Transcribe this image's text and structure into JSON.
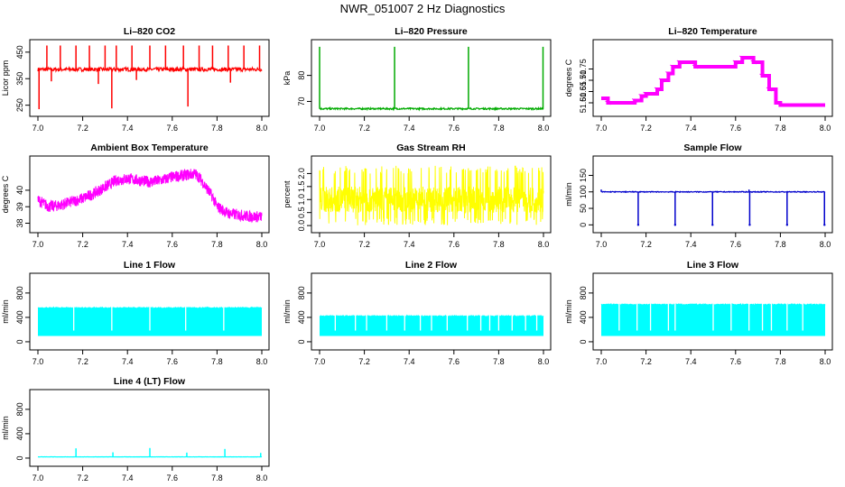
{
  "title": "NWR_051007  2 Hz Diagnostics",
  "chart_data": [
    {
      "id": "co2",
      "type": "line",
      "title": "Li–820 CO2",
      "ylabel": "Licor ppm",
      "color": "#ff0000",
      "xlim": [
        7.0,
        8.0
      ],
      "ylim": [
        225,
        480
      ],
      "yticks": [
        250,
        350,
        450
      ],
      "ytick_labels": [
        "250",
        "350",
        "450"
      ],
      "xticks": [
        7.0,
        7.2,
        7.4,
        7.6,
        7.8,
        8.0
      ],
      "xtick_labels": [
        "7.0",
        "7.2",
        "7.4",
        "7.6",
        "7.8",
        "8.0"
      ],
      "baseline": 385,
      "noise": 7,
      "spikes_up": [
        7.04,
        7.1,
        7.17,
        7.23,
        7.3,
        7.35,
        7.42,
        7.5,
        7.57,
        7.65,
        7.72,
        7.78,
        7.85,
        7.92,
        7.99
      ],
      "spike_up_value": 475,
      "spikes_down": [
        7.005,
        7.06,
        7.27,
        7.33,
        7.44,
        7.67,
        7.86
      ],
      "spike_down_values": [
        235,
        340,
        330,
        238,
        345,
        245,
        335
      ]
    },
    {
      "id": "pressure",
      "type": "line",
      "title": "Li–820 Pressure",
      "ylabel": "kPa",
      "color": "#00aa00",
      "xlim": [
        7.0,
        8.0
      ],
      "ylim": [
        66,
        92
      ],
      "yticks": [
        70,
        80
      ],
      "ytick_labels": [
        "70",
        "80"
      ],
      "xticks": [
        7.0,
        7.2,
        7.4,
        7.6,
        7.8,
        8.0
      ],
      "xtick_labels": [
        "7.0",
        "7.2",
        "7.4",
        "7.6",
        "7.8",
        "8.0"
      ],
      "baseline": 67.2,
      "noise": 0.3,
      "spikes_up": [
        7.0,
        7.335,
        7.665,
        7.998
      ],
      "spike_up_value": 91,
      "spikes_down": [],
      "spike_down_values": []
    },
    {
      "id": "licor-temp",
      "type": "step",
      "title": "Li–820 Temperature",
      "ylabel": "degrees C",
      "color": "#ff00ff",
      "xlim": [
        7.0,
        8.0
      ],
      "ylim": [
        51.56,
        51.86
      ],
      "yticks": [
        51.6,
        51.65,
        51.7,
        51.75
      ],
      "ytick_labels": [
        "51.60",
        "51.65",
        "51.70",
        "51.75"
      ],
      "xticks": [
        7.0,
        7.2,
        7.4,
        7.6,
        7.8,
        8.0
      ],
      "xtick_labels": [
        "7.0",
        "7.2",
        "7.4",
        "7.6",
        "7.8",
        "8.0"
      ],
      "x": [
        7.0,
        7.03,
        7.15,
        7.18,
        7.2,
        7.25,
        7.27,
        7.3,
        7.32,
        7.35,
        7.42,
        7.6,
        7.63,
        7.68,
        7.72,
        7.75,
        7.78,
        7.8,
        8.0
      ],
      "y": [
        51.62,
        51.6,
        51.61,
        51.63,
        51.64,
        51.66,
        51.7,
        51.73,
        51.76,
        51.78,
        51.76,
        51.78,
        51.8,
        51.78,
        51.72,
        51.66,
        51.6,
        51.59,
        51.59
      ]
    },
    {
      "id": "ambient-temp",
      "type": "band",
      "title": "Ambient Box Temperature",
      "ylabel": "degrees C",
      "color": "#ff00ff",
      "xlim": [
        7.0,
        8.0
      ],
      "ylim": [
        37.7,
        41.8
      ],
      "yticks": [
        38,
        39,
        40
      ],
      "ytick_labels": [
        "38",
        "39",
        "40"
      ],
      "xticks": [
        7.0,
        7.2,
        7.4,
        7.6,
        7.8,
        8.0
      ],
      "xtick_labels": [
        "7.0",
        "7.2",
        "7.4",
        "7.6",
        "7.8",
        "8.0"
      ],
      "x": [
        7.0,
        7.05,
        7.1,
        7.15,
        7.2,
        7.25,
        7.3,
        7.35,
        7.4,
        7.45,
        7.5,
        7.55,
        7.6,
        7.65,
        7.7,
        7.72,
        7.75,
        7.78,
        7.8,
        7.85,
        7.9,
        7.95,
        8.0
      ],
      "y": [
        39.4,
        39.0,
        39.1,
        39.3,
        39.5,
        39.8,
        40.2,
        40.6,
        40.7,
        40.6,
        40.5,
        40.6,
        40.8,
        40.9,
        41.0,
        40.8,
        40.2,
        39.6,
        39.0,
        38.6,
        38.5,
        38.4,
        38.4
      ],
      "width": 0.35
    },
    {
      "id": "gas-rh",
      "type": "noise",
      "title": "Gas Stream RH",
      "ylabel": "percent",
      "color": "#ffff00",
      "xlim": [
        7.0,
        8.0
      ],
      "ylim": [
        -0.1,
        2.5
      ],
      "yticks": [
        0.0,
        0.5,
        1.0,
        1.5,
        2.0
      ],
      "ytick_labels": [
        "0.0",
        "0.5",
        "1.0",
        "1.5",
        "2.0"
      ],
      "xticks": [
        7.0,
        7.2,
        7.4,
        7.6,
        7.8,
        8.0
      ],
      "xtick_labels": [
        "7.0",
        "7.2",
        "7.4",
        "7.6",
        "7.8",
        "8.0"
      ],
      "center": 1.0,
      "core_low": 0.5,
      "core_high": 1.5,
      "extreme_low": 0.0,
      "extreme_high": 2.3
    },
    {
      "id": "sample-flow",
      "type": "line",
      "title": "Sample Flow",
      "ylabel": "ml/min",
      "color": "#0000cc",
      "xlim": [
        7.0,
        8.0
      ],
      "ylim": [
        -10,
        195
      ],
      "yticks": [
        0,
        50,
        100,
        150
      ],
      "ytick_labels": [
        "0",
        "50",
        "100",
        "150"
      ],
      "xticks": [
        7.0,
        7.2,
        7.4,
        7.6,
        7.8,
        8.0
      ],
      "xtick_labels": [
        "7.0",
        "7.2",
        "7.4",
        "7.6",
        "7.8",
        "8.0"
      ],
      "baseline": 100,
      "noise": 1.2,
      "spikes_up": [
        7.0,
        7.66
      ],
      "spike_up_value": 107,
      "spikes_down": [
        7.165,
        7.33,
        7.497,
        7.663,
        7.83,
        7.997
      ],
      "spike_down_values": [
        0,
        0,
        0,
        0,
        0,
        0
      ]
    },
    {
      "id": "line1-flow",
      "type": "bar-band",
      "title": "Line 1 Flow",
      "ylabel": "ml/min",
      "color": "#00ffff",
      "xlim": [
        7.0,
        8.0
      ],
      "ylim": [
        -60,
        1050
      ],
      "yticks": [
        0,
        400,
        800
      ],
      "ytick_labels": [
        "0",
        "400",
        "800"
      ],
      "xticks": [
        7.0,
        7.2,
        7.4,
        7.6,
        7.8,
        8.0
      ],
      "xtick_labels": [
        "7.0",
        "7.2",
        "7.4",
        "7.6",
        "7.8",
        "8.0"
      ],
      "low": 95,
      "high": 555,
      "gaps": [
        7.16,
        7.33,
        7.5,
        7.66,
        7.83
      ]
    },
    {
      "id": "line2-flow",
      "type": "bar-band",
      "title": "Line 2 Flow",
      "ylabel": "ml/min",
      "color": "#00ffff",
      "xlim": [
        7.0,
        8.0
      ],
      "ylim": [
        -60,
        1050
      ],
      "yticks": [
        0,
        400,
        800
      ],
      "ytick_labels": [
        "0",
        "400",
        "800"
      ],
      "xticks": [
        7.0,
        7.2,
        7.4,
        7.6,
        7.8,
        8.0
      ],
      "xtick_labels": [
        "7.0",
        "7.2",
        "7.4",
        "7.6",
        "7.8",
        "8.0"
      ],
      "low": 95,
      "high": 420,
      "gaps": [
        7.07,
        7.16,
        7.21,
        7.3,
        7.38,
        7.45,
        7.5,
        7.57,
        7.66,
        7.72,
        7.76,
        7.8,
        7.86,
        7.92,
        7.97
      ]
    },
    {
      "id": "line3-flow",
      "type": "bar-band",
      "title": "Line 3 Flow",
      "ylabel": "ml/min",
      "color": "#00ffff",
      "xlim": [
        7.0,
        8.0
      ],
      "ylim": [
        -60,
        1050
      ],
      "yticks": [
        0,
        400,
        800
      ],
      "ytick_labels": [
        "0",
        "400",
        "800"
      ],
      "xticks": [
        7.0,
        7.2,
        7.4,
        7.6,
        7.8,
        8.0
      ],
      "xtick_labels": [
        "7.0",
        "7.2",
        "7.4",
        "7.6",
        "7.8",
        "8.0"
      ],
      "low": 95,
      "high": 610,
      "gaps": [
        7.08,
        7.16,
        7.22,
        7.3,
        7.33,
        7.5,
        7.58,
        7.66,
        7.72,
        7.76,
        7.83,
        7.9
      ]
    },
    {
      "id": "line4-flow",
      "type": "line",
      "title": "Line 4 (LT) Flow",
      "ylabel": "ml/min",
      "color": "#00ffff",
      "xlim": [
        7.0,
        8.0
      ],
      "ylim": [
        -60,
        1050
      ],
      "yticks": [
        0,
        400,
        800
      ],
      "ytick_labels": [
        "0",
        "400",
        "800"
      ],
      "xticks": [
        7.0,
        7.2,
        7.4,
        7.6,
        7.8,
        8.0
      ],
      "xtick_labels": [
        "7.0",
        "7.2",
        "7.4",
        "7.6",
        "7.8",
        "8.0"
      ],
      "baseline": 20,
      "noise": 2,
      "spikes_up": [
        7.17,
        7.335,
        7.5,
        7.665,
        7.835,
        7.995
      ],
      "spike_up_values": [
        160,
        95,
        165,
        90,
        150,
        85
      ],
      "spike_up_value": 150,
      "spikes_down": [],
      "spike_down_values": []
    }
  ]
}
